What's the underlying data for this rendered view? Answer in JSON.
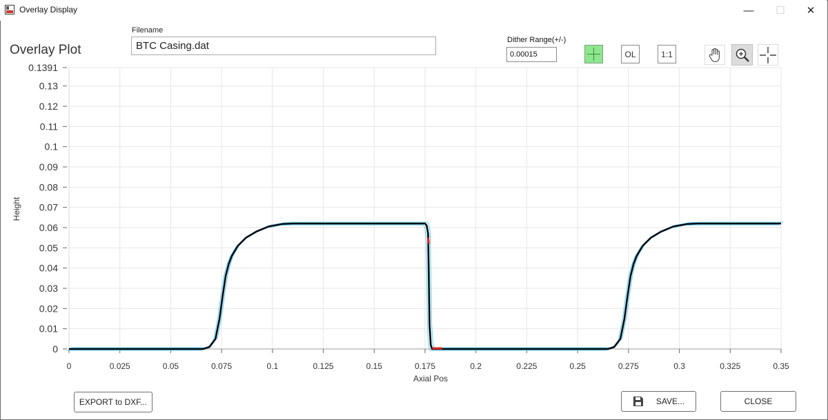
{
  "window": {
    "title": "Overlay Display",
    "minimize_glyph": "—",
    "maximize_glyph": "☐",
    "close_glyph": "✕"
  },
  "plot_title": "Overlay Plot",
  "filename": {
    "label": "Filename",
    "value": "BTC Casing.dat"
  },
  "dither": {
    "label": "Dither Range(+/-)",
    "value": "0.00015"
  },
  "toolbar": {
    "crosshair_toggle_icon": "crosshair-plus-icon",
    "ol_label": "OL",
    "one_to_one_label": "1:1",
    "pan_icon": "hand-pan-icon",
    "zoom_icon": "zoom-in-icon",
    "cursor_icon": "crosshair-cursor-icon"
  },
  "buttons": {
    "export": "EXPORT to DXF...",
    "save": "SAVE...",
    "close": "CLOSE"
  },
  "colors": {
    "green_toggle": "#8ee68e",
    "grid": "#e6e6e6",
    "profile": "#000000",
    "tolerance": "#5fcfe0",
    "steel": "#4a79a8",
    "highlight": "#e02020"
  },
  "chart_data": {
    "type": "line",
    "xlabel": "Axial Pos",
    "ylabel": "Height",
    "xlim": [
      0,
      0.35
    ],
    "ylim": [
      0,
      0.1391
    ],
    "x_ticks": [
      "0",
      "0.025",
      "0.05",
      "0.075",
      "0.1",
      "0.125",
      "0.15",
      "0.175",
      "0.2",
      "0.225",
      "0.25",
      "0.275",
      "0.3",
      "0.325",
      "0.35"
    ],
    "x_tick_values": [
      0,
      0.025,
      0.05,
      0.075,
      0.1,
      0.125,
      0.15,
      0.175,
      0.2,
      0.225,
      0.25,
      0.275,
      0.3,
      0.325,
      0.35
    ],
    "y_ticks": [
      "0",
      "0.01",
      "0.02",
      "0.03",
      "0.04",
      "0.05",
      "0.06",
      "0.07",
      "0.08",
      "0.09",
      "0.1",
      "0.11",
      "0.12",
      "0.13",
      "0.1391"
    ],
    "y_tick_values": [
      0,
      0.01,
      0.02,
      0.03,
      0.04,
      0.05,
      0.06,
      0.07,
      0.08,
      0.09,
      0.1,
      0.11,
      0.12,
      0.13,
      0.1391
    ],
    "grid": true,
    "series": [
      {
        "color": "#000000",
        "x": [
          0,
          0.066,
          0.069,
          0.072,
          0.074,
          0.0755,
          0.077,
          0.0785,
          0.08,
          0.083,
          0.087,
          0.092,
          0.098,
          0.105,
          0.11,
          0.175,
          0.1758,
          0.1765,
          0.1768,
          0.1772,
          0.1778,
          0.1785,
          0.184,
          0.265,
          0.268,
          0.271,
          0.273,
          0.2745,
          0.276,
          0.2775,
          0.279,
          0.282,
          0.286,
          0.291,
          0.297,
          0.304,
          0.309,
          0.35
        ],
        "y": [
          0,
          0,
          0.001,
          0.005,
          0.015,
          0.026,
          0.036,
          0.042,
          0.046,
          0.051,
          0.055,
          0.058,
          0.0605,
          0.0618,
          0.062,
          0.062,
          0.061,
          0.057,
          0.04,
          0.012,
          0.002,
          0,
          0,
          0,
          0.001,
          0.005,
          0.015,
          0.026,
          0.036,
          0.042,
          0.046,
          0.051,
          0.055,
          0.058,
          0.0605,
          0.0618,
          0.062,
          0.062
        ]
      }
    ]
  }
}
